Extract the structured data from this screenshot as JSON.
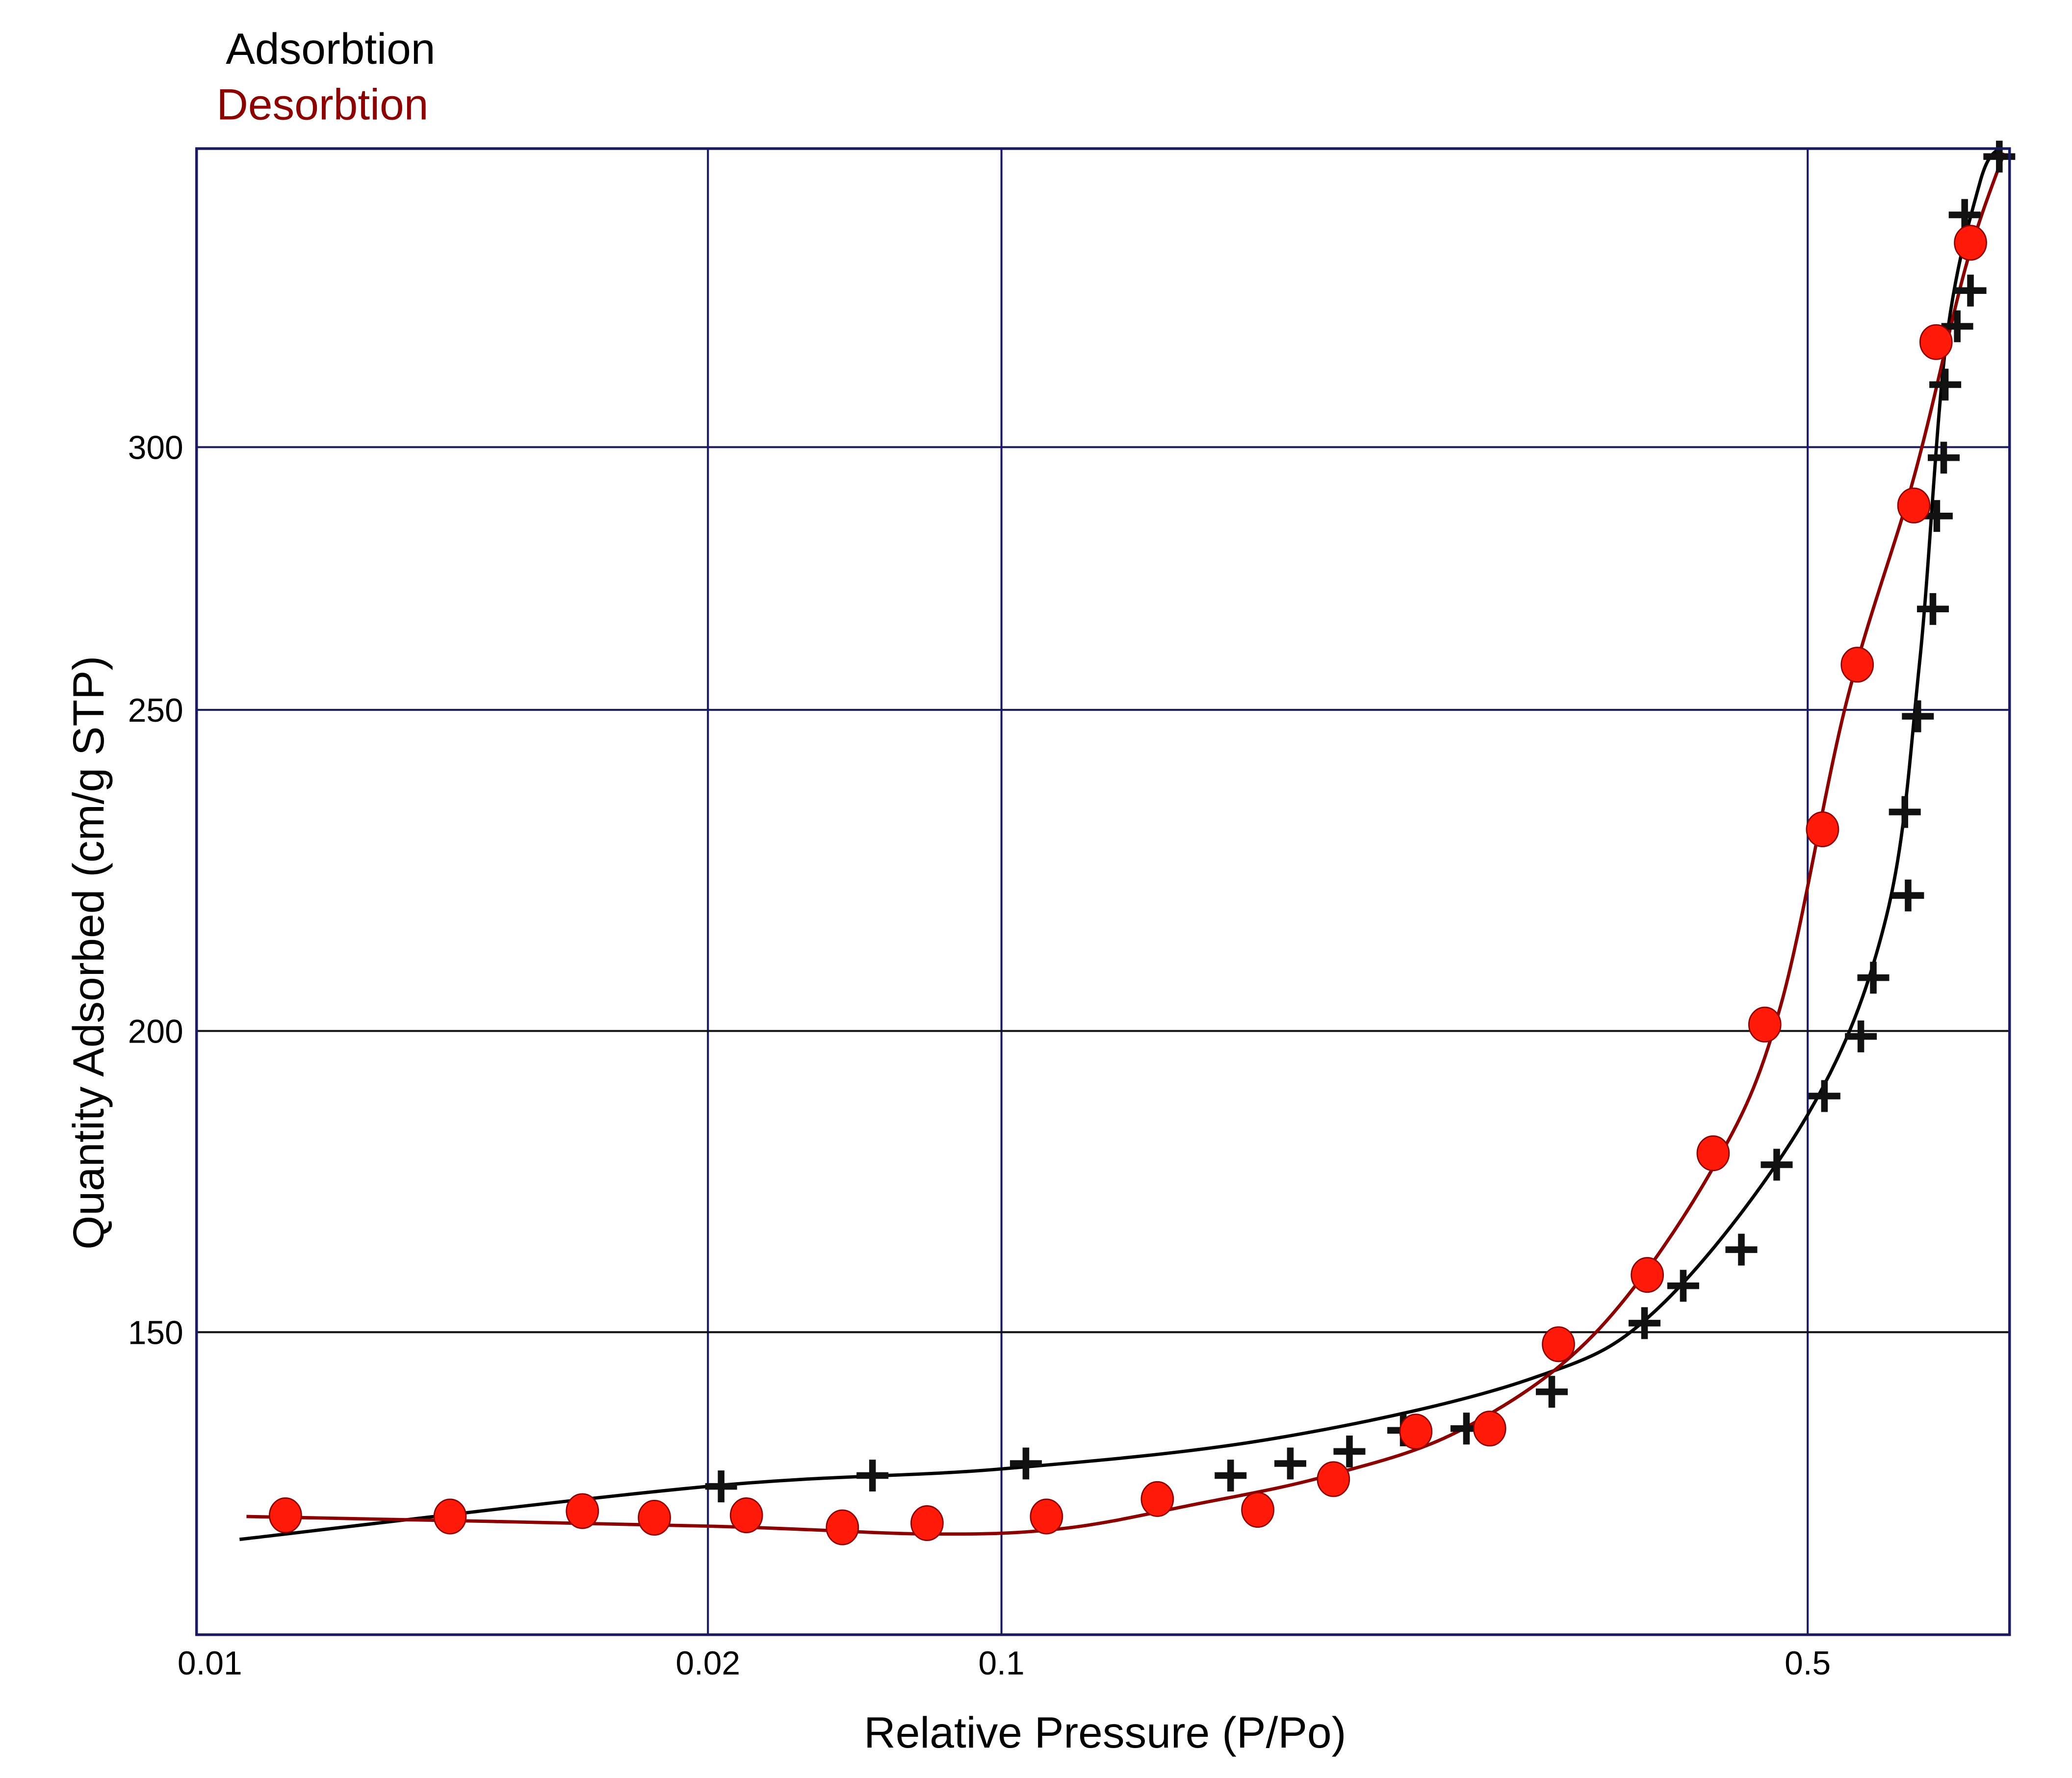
{
  "chart_data": {
    "type": "scatter",
    "title": "",
    "xlabel": "Relative Pressure (P/Po)",
    "ylabel": "Quantity Adsorbed (cm/g STP)",
    "x_ticks": [
      {
        "value": 0.01,
        "label": "0.01"
      },
      {
        "value": 0.02,
        "label": "0.02"
      },
      {
        "value": 0.1,
        "label": "0.1"
      },
      {
        "value": 0.5,
        "label": "0.5"
      }
    ],
    "y_ticks": [
      {
        "value": 150,
        "label": "150"
      },
      {
        "value": 200,
        "label": "200"
      },
      {
        "value": 250,
        "label": "250"
      },
      {
        "value": 300,
        "label": "300"
      }
    ],
    "xlim": [
      0.01,
      0.75
    ],
    "ylim": [
      100,
      357
    ],
    "grid": true,
    "legend_position": "top-left",
    "series": [
      {
        "name": "Adsorbtion",
        "color": "#000000",
        "marker": "plus",
        "points": [
          [
            0.0215,
            124.4
          ],
          [
            0.0493,
            126.2
          ],
          [
            0.105,
            128.2
          ],
          [
            0.158,
            126.2
          ],
          [
            0.178,
            128.2
          ],
          [
            0.2003,
            130.2
          ],
          [
            0.223,
            133.7
          ],
          [
            0.253,
            134.0
          ],
          [
            0.3,
            140.1
          ],
          [
            0.361,
            151.5
          ],
          [
            0.39,
            157.7
          ],
          [
            0.438,
            163.7
          ],
          [
            0.47,
            177.8
          ],
          [
            0.517,
            189.2
          ],
          [
            0.556,
            199.1
          ],
          [
            0.57,
            208.3
          ],
          [
            0.611,
            221.1
          ],
          [
            0.607,
            234.1
          ],
          [
            0.623,
            249.0
          ],
          [
            0.642,
            269.2
          ],
          [
            0.647,
            286.9
          ],
          [
            0.656,
            298.0
          ],
          [
            0.658,
            311.9
          ],
          [
            0.674,
            323.0
          ],
          [
            0.692,
            329.8
          ],
          [
            0.684,
            344.2
          ],
          [
            0.733,
            355.3
          ]
        ],
        "fit": [
          [
            0.0106,
            115.6
          ],
          [
            0.02,
            124.4
          ],
          [
            0.1,
            127.3
          ],
          [
            0.173,
            132.4
          ],
          [
            0.286,
            142.1
          ],
          [
            0.372,
            154.2
          ],
          [
            0.5,
            186.1
          ],
          [
            0.585,
            217.8
          ],
          [
            0.625,
            258.8
          ],
          [
            0.659,
            319.7
          ],
          [
            0.705,
            350.3
          ],
          [
            0.733,
            357
          ]
        ]
      },
      {
        "name": "Desorbtion",
        "color": "#8b0000",
        "marker_color": "#ff1a0a",
        "marker": "circle",
        "points": [
          [
            0.01128,
            119.6
          ],
          [
            0.0141,
            119.4
          ],
          [
            0.01687,
            120.3
          ],
          [
            0.0186,
            119.2
          ],
          [
            0.0247,
            119.6
          ],
          [
            0.0418,
            117.6
          ],
          [
            0.0665,
            118.3
          ],
          [
            0.1094,
            119.4
          ],
          [
            0.1365,
            122.3
          ],
          [
            0.1668,
            120.5
          ],
          [
            0.194,
            125.6
          ],
          [
            0.2287,
            133.5
          ],
          [
            0.265,
            134.0
          ],
          [
            0.304,
            148.0
          ],
          [
            0.363,
            159.5
          ],
          [
            0.414,
            179.7
          ],
          [
            0.459,
            201.0
          ],
          [
            0.515,
            231.4
          ],
          [
            0.552,
            258.6
          ],
          [
            0.618,
            288.9
          ],
          [
            0.646,
            320.0
          ],
          [
            0.692,
            338.9
          ]
        ],
        "fit": [
          [
            0.0107,
            119.4
          ],
          [
            0.02,
            117.8
          ],
          [
            0.0674,
            116.5
          ],
          [
            0.113,
            117.4
          ],
          [
            0.147,
            121.4
          ],
          [
            0.192,
            126.2
          ],
          [
            0.251,
            133.9
          ],
          [
            0.327,
            149.8
          ],
          [
            0.414,
            177.3
          ],
          [
            0.473,
            203.5
          ],
          [
            0.54,
            251.3
          ],
          [
            0.618,
            294.2
          ],
          [
            0.686,
            334.6
          ],
          [
            0.74,
            356
          ]
        ]
      }
    ]
  }
}
